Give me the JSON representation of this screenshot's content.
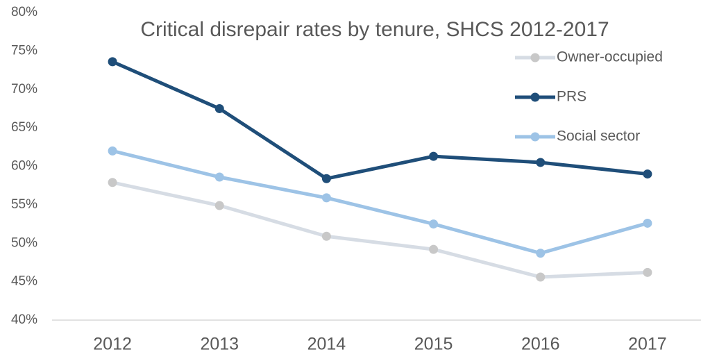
{
  "chart_data": {
    "type": "line",
    "title": "Critical disrepair rates by tenure, SHCS 2012-2017",
    "categories": [
      "2012",
      "2013",
      "2014",
      "2015",
      "2016",
      "2017"
    ],
    "series": [
      {
        "name": "Owner-occupied",
        "color": "#d6dce4",
        "marker_color": "#c8c8c8",
        "values": [
          57.9,
          54.9,
          50.9,
          49.2,
          45.6,
          46.2
        ]
      },
      {
        "name": "PRS",
        "color": "#1f4e79",
        "marker_color": "#1f4e79",
        "values": [
          73.6,
          67.5,
          58.4,
          61.3,
          60.5,
          59.0
        ]
      },
      {
        "name": "Social sector",
        "color": "#9dc3e6",
        "marker_color": "#9dc3e6",
        "values": [
          62.0,
          58.6,
          55.9,
          52.5,
          48.7,
          52.6
        ]
      }
    ],
    "ylim": [
      40,
      80
    ],
    "yticks": [
      {
        "value": 40,
        "label": "40%"
      },
      {
        "value": 45,
        "label": "45%"
      },
      {
        "value": 50,
        "label": "50%"
      },
      {
        "value": 55,
        "label": "55%"
      },
      {
        "value": 60,
        "label": "60%"
      },
      {
        "value": 65,
        "label": "65%"
      },
      {
        "value": 70,
        "label": "70%"
      },
      {
        "value": 75,
        "label": "75%"
      },
      {
        "value": 80,
        "label": "80%"
      }
    ],
    "grid": false,
    "legend": "top-right"
  }
}
